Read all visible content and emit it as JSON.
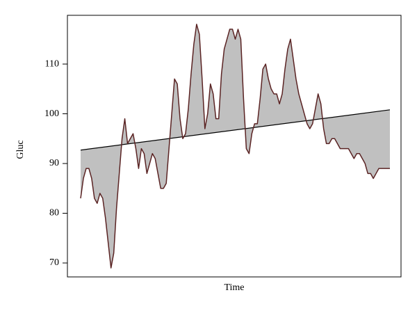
{
  "chart_data": {
    "type": "line",
    "x_label": "Time",
    "y_label": "Gluc",
    "values": [
      83,
      87,
      89,
      89,
      87,
      83,
      82,
      84,
      83,
      79,
      74,
      69,
      72,
      81,
      88,
      95,
      99,
      94,
      95,
      96,
      93,
      89,
      93,
      92,
      88,
      90,
      92,
      91,
      88,
      85,
      85,
      86,
      93,
      100,
      107,
      106,
      99,
      95,
      96,
      101,
      108,
      114,
      118,
      116,
      107,
      97,
      100,
      106,
      104,
      99,
      99,
      108,
      113,
      115,
      117,
      117,
      115,
      117,
      115,
      103,
      93,
      92,
      96,
      98,
      98,
      103,
      109,
      110,
      107,
      105,
      104,
      104,
      102,
      104,
      109,
      113,
      115,
      111,
      107,
      104,
      102,
      100,
      98,
      97,
      98,
      101,
      104,
      102,
      97,
      94,
      94,
      95,
      95,
      94,
      93,
      93,
      93,
      93,
      92,
      91,
      92,
      92,
      91,
      90,
      88,
      88,
      87,
      88,
      89,
      89,
      89,
      89,
      89
    ],
    "trend": [
      92.7,
      100.8
    ],
    "color": "#5a2323",
    "fill_color": "#c0c0c0",
    "trend_color": "#000000",
    "ylim": [
      67.2,
      119.8
    ],
    "yticks": [
      70,
      80,
      90,
      100,
      110
    ],
    "grid": false
  }
}
